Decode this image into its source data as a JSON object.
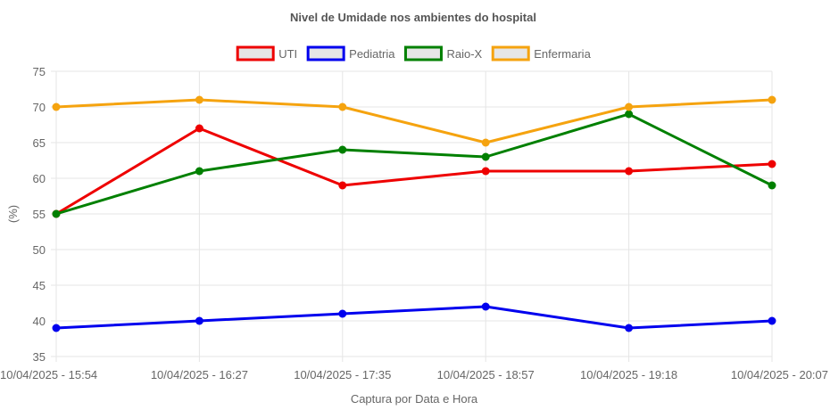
{
  "chart_data": {
    "type": "line",
    "title": "Nivel de Umidade nos ambientes do hospital",
    "xlabel": "Captura por Data e Hora",
    "ylabel": "(%)",
    "ylim": [
      35,
      75
    ],
    "yticks": [
      35,
      40,
      45,
      50,
      55,
      60,
      65,
      70,
      75
    ],
    "grid": true,
    "legend_position": "top",
    "categories": [
      "10/04/2025 - 15:54",
      "10/04/2025 - 16:27",
      "10/04/2025 - 17:35",
      "10/04/2025 - 18:57",
      "10/04/2025 - 19:18",
      "10/04/2025 - 20:07"
    ],
    "series": [
      {
        "name": "UTI",
        "color": "#ee0000",
        "values": [
          55,
          67,
          59,
          61,
          61,
          62
        ]
      },
      {
        "name": "Pediatria",
        "color": "#0000ee",
        "values": [
          39,
          40,
          41,
          42,
          39,
          40
        ]
      },
      {
        "name": "Raio-X",
        "color": "#008000",
        "values": [
          55,
          61,
          64,
          63,
          69,
          59
        ]
      },
      {
        "name": "Enfermaria",
        "color": "#f5a30f",
        "values": [
          70,
          71,
          70,
          65,
          70,
          71
        ]
      }
    ]
  }
}
